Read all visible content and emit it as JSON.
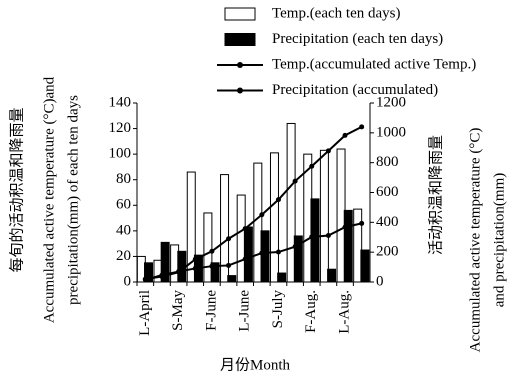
{
  "chart_data": {
    "type": "bar",
    "categories": [
      "L-April",
      null,
      "S-May",
      null,
      "F-June",
      null,
      "L-June",
      null,
      "S-July",
      null,
      "F-Aug.",
      null,
      "L-Aug.",
      null
    ],
    "series": [
      {
        "name": "Temp.(each ten days)",
        "type": "bar",
        "color": "#ffffff",
        "values": [
          20,
          17,
          29,
          86,
          54,
          84,
          68,
          93,
          101,
          124,
          100,
          103,
          104,
          57
        ]
      },
      {
        "name": "Precipitation (each ten days)",
        "type": "bar",
        "color": "#000000",
        "values": [
          15,
          31,
          24,
          21,
          15,
          5,
          43,
          40,
          7,
          36,
          65,
          10,
          56,
          25
        ]
      },
      {
        "name": "Temp.(accumulated active Temp.)",
        "type": "line",
        "axis": "y2",
        "color": "#000000",
        "values": [
          20,
          37,
          66,
          152,
          206,
          290,
          358,
          451,
          552,
          676,
          776,
          879,
          983,
          1040
        ]
      },
      {
        "name": "Precipitation (accumulated)",
        "type": "line",
        "axis": "y2",
        "color": "#000000",
        "values": [
          15,
          46,
          70,
          91,
          106,
          111,
          154,
          194,
          201,
          237,
          302,
          312,
          368,
          393
        ]
      }
    ],
    "ylim": [
      0,
      140
    ],
    "yticks": [
      0,
      20,
      40,
      60,
      80,
      100,
      120,
      140
    ],
    "y2lim": [
      0,
      1200
    ],
    "y2ticks": [
      0,
      200,
      400,
      600,
      800,
      1000,
      1200
    ],
    "ylabel": [
      "每旬的活动积温和降雨量",
      "Accumulated active temperature (°C)and",
      "precipitation(mm) of each ten days"
    ],
    "y2label": [
      "活动积温和降雨量",
      "Accumulated active temperature (°C)",
      "and precipitation(mm)"
    ],
    "xlabel": "月份Month"
  }
}
